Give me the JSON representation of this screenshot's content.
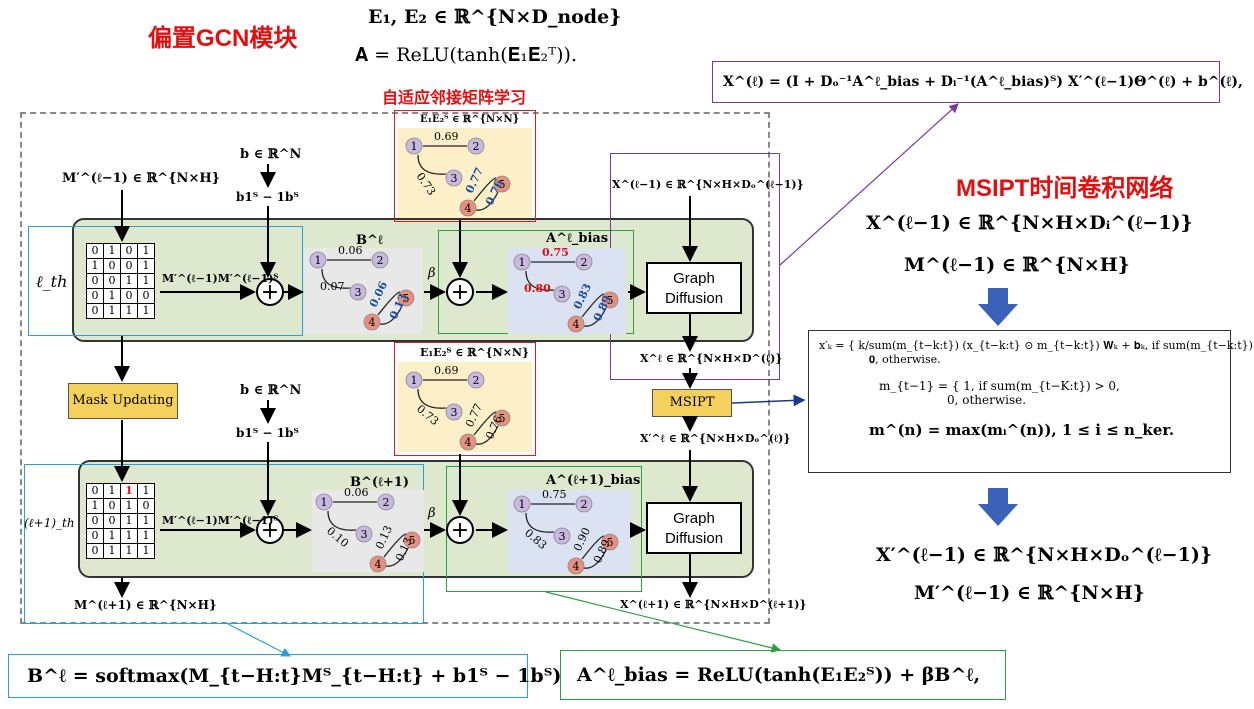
{
  "title_gcn": "偏置GCN模块",
  "title_adaptive": "自适应邻接矩阵学习",
  "title_msipt": "MSIPT时间卷积网络",
  "top_formula_1": "𝐄₁, 𝐄₂ ∈ ℝ^{N×D_node}",
  "top_formula_2": "𝐀 = ReLU(tanh(𝐄₁𝐄₂ᵀ)).",
  "xl_formula": "𝐗^(ℓ) = (𝐈 + 𝐃ₒ⁻¹𝐀^ℓ_bias + 𝐃ᵢ⁻¹(𝐀^ℓ_bias)ᵀ) 𝐗′^(ℓ−1)𝚯^(ℓ) + 𝐛^(ℓ),",
  "right_in_1": "𝐗^(ℓ−1) ∈ ℝ^{N×H×Dᵢ^(ℓ−1)}",
  "right_in_2": "𝐌^(ℓ−1) ∈ ℝ^{N×H}",
  "right_out_1": "𝐗′^(ℓ−1) ∈ ℝ^{N×H×Dₒ^(ℓ−1)}",
  "right_out_2": "𝐌′^(ℓ−1) ∈ ℝ^{N×H}",
  "msipt_eq_1": "x′ₖ = { k/sum(m_{t−k:t}) (x_{t−k:t} ⊙ m_{t−k:t}) 𝐖ₖ + 𝐛ₖ,   if sum(m_{t−k:t}) > 0,",
  "msipt_eq_1b": "𝟎,   otherwise.",
  "msipt_eq_2": "m_{t−1} = { 1,  if sum(m_{t−K:t}) > 0,",
  "msipt_eq_2b": "0,  otherwise.",
  "msipt_eq_3": "𝐦^(n) = max(𝐦ᵢ^(n)),   1 ≤ i ≤ n_ker.",
  "bottom_B": "𝐁^ℓ = softmax(𝐌_{t−H:t}𝐌ᵀ_{t−H:t} + 𝐛𝟏ᵀ − 𝟏𝐛ᵀ)",
  "bottom_A": "𝐀^ℓ_bias = ReLU(tanh(𝐄₁𝐄₂ᵀ)) + β𝐁^ℓ,",
  "labels": {
    "m_in": "𝐌′^(ℓ−1) ∈ ℝ^{N×H}",
    "b_top": "𝐛 ∈ ℝ^N",
    "b1_top": "𝐛𝟏ᵀ − 𝟏𝐛ᵀ",
    "b_mid": "𝐛 ∈ ℝ^N",
    "b1_mid": "𝐛𝟏ᵀ − 𝟏𝐛ᵀ",
    "mm_top": "𝐌′^(ℓ−1)𝐌′^(ℓ−1)ᵀ",
    "mm_bot": "𝐌′^(ℓ−1)𝐌′^(ℓ−1)ᵀ",
    "l_th": "ℓ_th",
    "l1_th": "(ℓ+1)_th",
    "B_l": "𝐁^ℓ",
    "B_l1": "𝐁^(ℓ+1)",
    "A_bias_l": "𝐀^ℓ_bias",
    "A_bias_l1": "𝐀^(ℓ+1)_bias",
    "beta": "β",
    "x_in": "𝐗^(ℓ−1) ∈ ℝ^{N×H×Dₒ^(ℓ−1)}",
    "x_l": "𝐗^ℓ ∈ ℝ^{N×H×D^(ℓ)}",
    "x_lp": "𝐗′^ℓ ∈ ℝ^{N×H×Dₒ^(ℓ)}",
    "x_l1": "𝐗^(ℓ+1) ∈ ℝ^{N×H×D^(ℓ+1)}",
    "m_out": "𝐌^(ℓ+1) ∈ ℝ^{N×H}",
    "e1e2_top": "𝐄₁𝐄₂ᵀ ∈ ℝ^{N×N}",
    "e1e2_mid": "𝐄₁𝐄₂ᵀ ∈ ℝ^{N×N}",
    "graph_diffusion_top": "Graph Diffusion",
    "graph_diffusion_bot": "Graph Diffusion",
    "mask_updating": "Mask Updating",
    "msipt": "MSIPT"
  },
  "matrix_top": [
    [
      "0",
      "1",
      "0",
      "1"
    ],
    [
      "1",
      "0",
      "0",
      "1"
    ],
    [
      "0",
      "0",
      "1",
      "1"
    ],
    [
      "0",
      "1",
      "0",
      "0"
    ],
    [
      "0",
      "1",
      "1",
      "1"
    ]
  ],
  "matrix_bot": [
    [
      "0",
      "1",
      "1",
      "1"
    ],
    [
      "1",
      "0",
      "1",
      "0"
    ],
    [
      "0",
      "0",
      "1",
      "1"
    ],
    [
      "0",
      "1",
      "1",
      "1"
    ],
    [
      "0",
      "1",
      "1",
      "1"
    ]
  ],
  "graph_E_top": {
    "w12": "0.69",
    "w13": "0.73",
    "w45a": "0.77",
    "w45b": "0.76"
  },
  "graph_E_mid": {
    "w12": "0.69",
    "w13": "0.73",
    "w45a": "0.77",
    "w45b": "0.76"
  },
  "graph_B_l": {
    "w12": "0.06",
    "w13": "0.07",
    "w45a": "0.06",
    "w45b": "0.13"
  },
  "graph_B_l1": {
    "w12": "0.06",
    "w13": "0.10",
    "w45a": "0.13",
    "w45b": "0.13"
  },
  "graph_A_l": {
    "w12": "0.75",
    "w13": "0.80",
    "w45a": "0.83",
    "w45b": "0.89"
  },
  "graph_A_l1": {
    "w12": "0.75",
    "w13": "0.83",
    "w45a": "0.90",
    "w45b": "0.89"
  },
  "colors": {
    "red": "#e01010",
    "purple_node": "#c9b8e0",
    "orange_node": "#e89080",
    "green_panel": "#dde8cf",
    "yellow": "#f4d05c"
  }
}
